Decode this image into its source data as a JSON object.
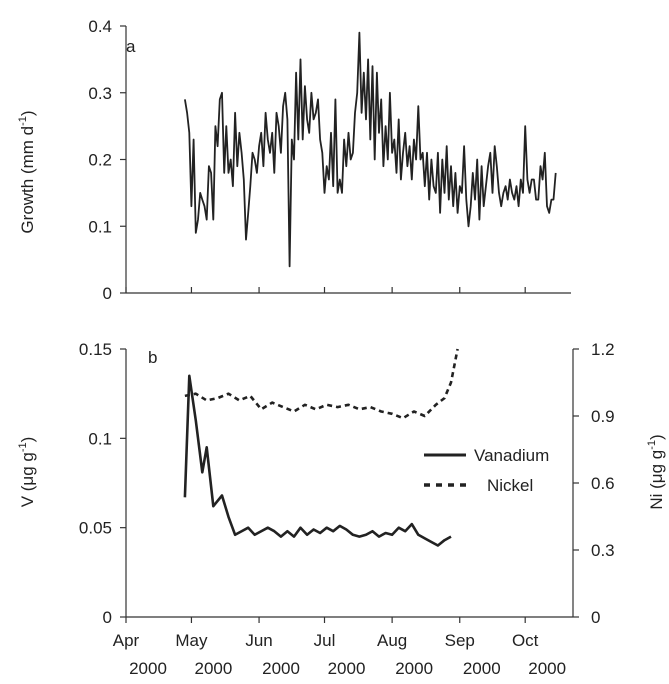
{
  "chart_data": [
    {
      "type": "line",
      "panel_label": "a",
      "ylabel": "Growth (mm d",
      "ylabel_sup": "-1",
      "ylabel_close": ")",
      "ylim": [
        0,
        0.4
      ],
      "yticks": [
        "0",
        "0.1",
        "0.2",
        "0.3",
        "0.4"
      ],
      "series": [
        {
          "x": [
            "2000-04-28",
            "2000-04-29",
            "2000-04-30",
            "2000-05-01",
            "2000-05-02",
            "2000-05-03",
            "2000-05-04",
            "2000-05-05",
            "2000-05-06",
            "2000-05-07",
            "2000-05-08",
            "2000-05-09",
            "2000-05-10",
            "2000-05-11",
            "2000-05-12",
            "2000-05-13",
            "2000-05-14",
            "2000-05-15",
            "2000-05-16",
            "2000-05-17",
            "2000-05-18",
            "2000-05-19",
            "2000-05-20",
            "2000-05-21",
            "2000-05-22",
            "2000-05-23",
            "2000-05-24",
            "2000-05-25",
            "2000-05-26",
            "2000-05-27",
            "2000-05-28",
            "2000-05-29",
            "2000-05-30",
            "2000-05-31",
            "2000-06-01",
            "2000-06-02",
            "2000-06-03",
            "2000-06-04",
            "2000-06-05",
            "2000-06-06",
            "2000-06-07",
            "2000-06-08",
            "2000-06-09",
            "2000-06-10",
            "2000-06-11",
            "2000-06-12",
            "2000-06-13",
            "2000-06-14",
            "2000-06-15",
            "2000-06-16",
            "2000-06-17",
            "2000-06-18",
            "2000-06-19",
            "2000-06-20",
            "2000-06-21",
            "2000-06-22",
            "2000-06-23",
            "2000-06-24",
            "2000-06-25",
            "2000-06-26",
            "2000-06-27",
            "2000-06-28",
            "2000-06-29",
            "2000-06-30",
            "2000-07-01",
            "2000-07-02",
            "2000-07-03",
            "2000-07-04",
            "2000-07-05",
            "2000-07-06",
            "2000-07-07",
            "2000-07-08",
            "2000-07-09",
            "2000-07-10",
            "2000-07-11",
            "2000-07-12",
            "2000-07-13",
            "2000-07-14",
            "2000-07-15",
            "2000-07-16",
            "2000-07-17",
            "2000-07-18",
            "2000-07-19",
            "2000-07-20",
            "2000-07-21",
            "2000-07-22",
            "2000-07-23",
            "2000-07-24",
            "2000-07-25",
            "2000-07-26",
            "2000-07-27",
            "2000-07-28",
            "2000-07-29",
            "2000-07-30",
            "2000-07-31",
            "2000-08-01",
            "2000-08-02",
            "2000-08-03",
            "2000-08-04",
            "2000-08-05",
            "2000-08-06",
            "2000-08-07",
            "2000-08-08",
            "2000-08-09",
            "2000-08-10",
            "2000-08-11",
            "2000-08-12",
            "2000-08-13",
            "2000-08-14",
            "2000-08-15",
            "2000-08-16",
            "2000-08-17",
            "2000-08-18",
            "2000-08-19",
            "2000-08-20",
            "2000-08-21",
            "2000-08-22",
            "2000-08-23",
            "2000-08-24",
            "2000-08-25",
            "2000-08-26",
            "2000-08-27",
            "2000-08-28",
            "2000-08-29",
            "2000-08-30",
            "2000-08-31",
            "2000-09-01",
            "2000-09-02",
            "2000-09-03",
            "2000-09-04",
            "2000-09-05",
            "2000-09-06",
            "2000-09-07",
            "2000-09-08",
            "2000-09-09",
            "2000-09-10",
            "2000-09-11",
            "2000-09-12",
            "2000-09-13",
            "2000-09-14",
            "2000-09-15",
            "2000-09-16",
            "2000-09-17",
            "2000-09-18",
            "2000-09-19",
            "2000-09-20",
            "2000-09-21",
            "2000-09-22",
            "2000-09-23",
            "2000-09-24",
            "2000-09-25",
            "2000-09-26",
            "2000-09-27",
            "2000-09-28",
            "2000-09-29",
            "2000-09-30",
            "2000-10-01",
            "2000-10-02",
            "2000-10-03",
            "2000-10-04",
            "2000-10-05",
            "2000-10-06",
            "2000-10-07",
            "2000-10-08",
            "2000-10-09",
            "2000-10-10",
            "2000-10-11",
            "2000-10-12",
            "2000-10-13",
            "2000-10-14",
            "2000-10-15"
          ],
          "y": [
            0.29,
            0.27,
            0.24,
            0.13,
            0.23,
            0.09,
            0.11,
            0.15,
            0.14,
            0.13,
            0.11,
            0.19,
            0.18,
            0.11,
            0.25,
            0.22,
            0.29,
            0.3,
            0.18,
            0.25,
            0.18,
            0.2,
            0.16,
            0.27,
            0.19,
            0.24,
            0.21,
            0.17,
            0.08,
            0.12,
            0.16,
            0.21,
            0.2,
            0.18,
            0.22,
            0.24,
            0.19,
            0.27,
            0.23,
            0.21,
            0.24,
            0.18,
            0.27,
            0.25,
            0.21,
            0.28,
            0.3,
            0.26,
            0.04,
            0.23,
            0.2,
            0.33,
            0.23,
            0.35,
            0.23,
            0.31,
            0.26,
            0.24,
            0.3,
            0.26,
            0.27,
            0.29,
            0.23,
            0.21,
            0.15,
            0.19,
            0.17,
            0.24,
            0.16,
            0.29,
            0.15,
            0.17,
            0.15,
            0.23,
            0.19,
            0.24,
            0.2,
            0.21,
            0.27,
            0.3,
            0.39,
            0.27,
            0.33,
            0.26,
            0.35,
            0.23,
            0.34,
            0.2,
            0.33,
            0.24,
            0.29,
            0.19,
            0.25,
            0.2,
            0.3,
            0.21,
            0.23,
            0.18,
            0.26,
            0.17,
            0.21,
            0.24,
            0.19,
            0.22,
            0.17,
            0.23,
            0.2,
            0.28,
            0.2,
            0.21,
            0.16,
            0.21,
            0.14,
            0.2,
            0.16,
            0.15,
            0.21,
            0.12,
            0.2,
            0.15,
            0.22,
            0.14,
            0.19,
            0.13,
            0.18,
            0.12,
            0.16,
            0.15,
            0.22,
            0.14,
            0.1,
            0.13,
            0.18,
            0.14,
            0.2,
            0.11,
            0.19,
            0.13,
            0.16,
            0.19,
            0.21,
            0.15,
            0.22,
            0.19,
            0.15,
            0.13,
            0.15,
            0.16,
            0.14,
            0.17,
            0.15,
            0.14,
            0.16,
            0.13,
            0.17,
            0.15,
            0.25,
            0.17,
            0.15,
            0.17,
            0.17,
            0.14,
            0.14,
            0.19,
            0.17,
            0.21,
            0.13,
            0.12,
            0.14,
            0.14,
            0.18
          ]
        }
      ]
    },
    {
      "type": "line",
      "panel_label": "b",
      "ylabel": "V (μg g",
      "ylabel_sup": "-1",
      "ylabel_close": ")",
      "ylim": [
        0,
        0.15
      ],
      "yticks": [
        "0",
        "0.05",
        "0.1",
        "0.15"
      ],
      "y2label": "Ni (μg g",
      "y2label_sup": "-1",
      "y2label_close": ")",
      "y2lim": [
        0,
        1.2
      ],
      "y2ticks": [
        "0",
        "0.3",
        "0.6",
        "0.9",
        "1.2"
      ],
      "legend_position": "right",
      "series": [
        {
          "name": "Vanadium",
          "axis": "left",
          "line_style": "solid",
          "x": [
            "2000-04-28",
            "2000-04-30",
            "2000-05-03",
            "2000-05-06",
            "2000-05-08",
            "2000-05-11",
            "2000-05-15",
            "2000-05-18",
            "2000-05-21",
            "2000-05-24",
            "2000-05-27",
            "2000-05-30",
            "2000-06-02",
            "2000-06-05",
            "2000-06-08",
            "2000-06-11",
            "2000-06-14",
            "2000-06-17",
            "2000-06-20",
            "2000-06-23",
            "2000-06-26",
            "2000-06-29",
            "2000-07-02",
            "2000-07-05",
            "2000-07-08",
            "2000-07-11",
            "2000-07-14",
            "2000-07-17",
            "2000-07-20",
            "2000-07-23",
            "2000-07-26",
            "2000-07-29",
            "2000-08-01",
            "2000-08-04",
            "2000-08-07",
            "2000-08-10",
            "2000-08-13",
            "2000-08-16",
            "2000-08-19",
            "2000-08-22",
            "2000-08-25",
            "2000-08-28"
          ],
          "y": [
            0.067,
            0.135,
            0.11,
            0.081,
            0.095,
            0.062,
            0.068,
            0.056,
            0.046,
            0.048,
            0.05,
            0.046,
            0.048,
            0.05,
            0.048,
            0.045,
            0.048,
            0.045,
            0.05,
            0.046,
            0.049,
            0.047,
            0.05,
            0.048,
            0.051,
            0.049,
            0.046,
            0.045,
            0.046,
            0.048,
            0.045,
            0.047,
            0.046,
            0.05,
            0.048,
            0.052,
            0.046,
            0.044,
            0.042,
            0.04,
            0.043,
            0.045
          ]
        },
        {
          "name": "Nickel",
          "axis": "right",
          "line_style": "dotted",
          "x": [
            "2000-04-28",
            "2000-05-03",
            "2000-05-08",
            "2000-05-13",
            "2000-05-18",
            "2000-05-23",
            "2000-05-28",
            "2000-06-02",
            "2000-06-07",
            "2000-06-12",
            "2000-06-17",
            "2000-06-22",
            "2000-06-27",
            "2000-07-02",
            "2000-07-07",
            "2000-07-12",
            "2000-07-17",
            "2000-07-22",
            "2000-07-27",
            "2000-08-01",
            "2000-08-06",
            "2000-08-11",
            "2000-08-16",
            "2000-08-21",
            "2000-08-25",
            "2000-08-28",
            "2000-08-31"
          ],
          "y": [
            0.99,
            1.0,
            0.97,
            0.98,
            1.0,
            0.97,
            0.99,
            0.93,
            0.96,
            0.94,
            0.92,
            0.95,
            0.93,
            0.95,
            0.94,
            0.95,
            0.93,
            0.94,
            0.92,
            0.91,
            0.89,
            0.92,
            0.9,
            0.95,
            0.98,
            1.05,
            1.2
          ]
        }
      ]
    }
  ],
  "x_axis": {
    "xlim": [
      "2000-04-01",
      "2000-10-22"
    ],
    "ticks": [
      {
        "date": "2000-04-01",
        "month": "Apr",
        "year": "2000"
      },
      {
        "date": "2000-05-01",
        "month": "May",
        "year": "2000"
      },
      {
        "date": "2000-06-01",
        "month": "Jun",
        "year": "2000"
      },
      {
        "date": "2000-07-01",
        "month": "Jul",
        "year": "2000"
      },
      {
        "date": "2000-08-01",
        "month": "Aug",
        "year": "2000"
      },
      {
        "date": "2000-09-01",
        "month": "Sep",
        "year": "2000"
      },
      {
        "date": "2000-10-01",
        "month": "Oct",
        "year": "2000"
      }
    ]
  }
}
